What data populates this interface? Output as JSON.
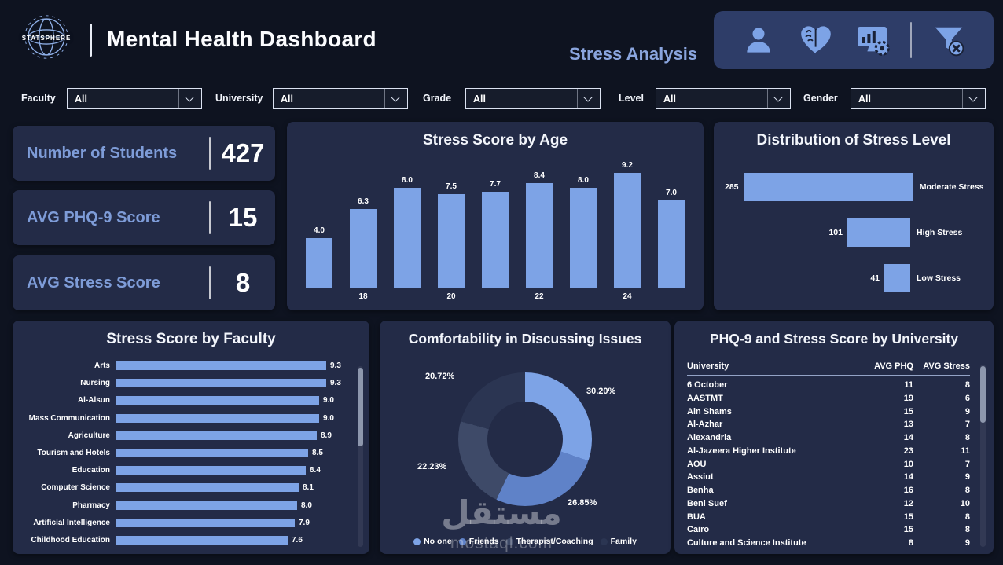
{
  "colors": {
    "background": "#0e1320",
    "card": "#232b47",
    "accent": "#7da3e6",
    "kpi_label": "#7e9cd8",
    "icon_panel": "#2e3d68"
  },
  "header": {
    "logo_text": "STATSPHERE",
    "title": "Mental Health Dashboard",
    "page_label": "Stress Analysis",
    "icons": [
      "person-icon",
      "heart-brain-icon",
      "analytics-monitor-icon",
      "filter-clear-icon"
    ]
  },
  "filters": [
    {
      "label": "Faculty",
      "value": "All"
    },
    {
      "label": "University",
      "value": "All"
    },
    {
      "label": "Grade",
      "value": "All"
    },
    {
      "label": "Level",
      "value": "All"
    },
    {
      "label": "Gender",
      "value": "All"
    }
  ],
  "kpis": [
    {
      "label": "Number of Students",
      "value": "427"
    },
    {
      "label": "AVG PHQ-9 Score",
      "value": "15"
    },
    {
      "label": "AVG Stress Score",
      "value": "8"
    }
  ],
  "chart_data": [
    {
      "id": "stress_by_age",
      "type": "bar",
      "title": "Stress Score by Age",
      "x_tick_labels": [
        "",
        "18",
        "",
        "20",
        "",
        "22",
        "",
        "24",
        ""
      ],
      "values": [
        4.0,
        6.3,
        8.0,
        7.5,
        7.7,
        8.4,
        8.0,
        9.2,
        7.0
      ],
      "ylim": [
        0,
        10
      ],
      "grid": false
    },
    {
      "id": "stress_level_distribution",
      "type": "bar",
      "orientation": "horizontal",
      "title": "Distribution of Stress Level",
      "categories": [
        "Moderate Stress",
        "High Stress",
        "Low Stress"
      ],
      "values": [
        285,
        101,
        41
      ]
    },
    {
      "id": "stress_by_faculty",
      "type": "bar",
      "orientation": "horizontal",
      "title": "Stress Score by Faculty",
      "categories": [
        "Arts",
        "Nursing",
        "Al-Alsun",
        "Mass Communication",
        "Agriculture",
        "Tourism and Hotels",
        "Education",
        "Computer Science",
        "Pharmacy",
        "Artificial Intelligence",
        "Childhood Education"
      ],
      "values": [
        9.3,
        9.3,
        9.0,
        9.0,
        8.9,
        8.5,
        8.4,
        8.1,
        8.0,
        7.9,
        7.6
      ],
      "xlim": [
        0,
        10
      ]
    },
    {
      "id": "comfortability",
      "type": "pie",
      "title": "Comfortability in Discussing Issues",
      "labels": [
        "No one",
        "Friends",
        "Therapist/Coaching",
        "Family"
      ],
      "values": [
        30.2,
        26.85,
        22.23,
        20.72
      ],
      "value_labels": [
        "30.20%",
        "26.85%",
        "22.23%",
        "20.72%"
      ],
      "colors": [
        "#7da3e6",
        "#5f82c8",
        "#3e4a68",
        "#2b3552"
      ],
      "legend_position": "bottom"
    },
    {
      "id": "university_table",
      "type": "table",
      "title": "PHQ-9 and Stress Score by University",
      "columns": [
        "University",
        "AVG PHQ",
        "AVG Stress"
      ],
      "rows": [
        [
          "6 October",
          11,
          8
        ],
        [
          "AASTMT",
          19,
          6
        ],
        [
          "Ain Shams",
          15,
          9
        ],
        [
          "Al-Azhar",
          13,
          7
        ],
        [
          "Alexandria",
          14,
          8
        ],
        [
          "Al-Jazeera Higher Institute",
          23,
          11
        ],
        [
          "AOU",
          10,
          7
        ],
        [
          "Assiut",
          14,
          9
        ],
        [
          "Benha",
          16,
          8
        ],
        [
          "Beni Suef",
          12,
          10
        ],
        [
          "BUA",
          15,
          8
        ],
        [
          "Cairo",
          15,
          8
        ],
        [
          "Culture and Science Institute",
          8,
          9
        ]
      ]
    }
  ],
  "watermark": {
    "line1": "مستقل",
    "line2": "mostaql.com"
  }
}
